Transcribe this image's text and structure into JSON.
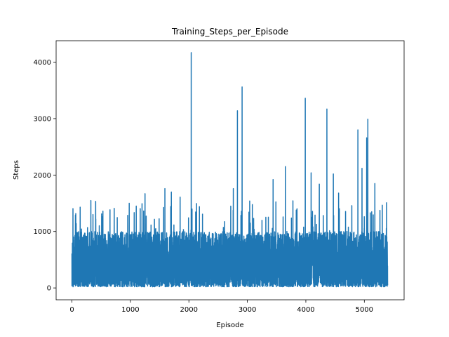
{
  "chart_data": {
    "type": "line",
    "title": "Training_Steps_per_Episode",
    "xlabel": "Episode",
    "ylabel": "Steps",
    "xlim": [
      -270,
      5680
    ],
    "ylim": [
      -210,
      4380
    ],
    "x_ticks": [
      0,
      1000,
      2000,
      3000,
      4000,
      5000
    ],
    "y_ticks": [
      0,
      1000,
      2000,
      3000,
      4000
    ],
    "grid": false,
    "legend": "none",
    "episode_count": 5400,
    "series": [
      {
        "color": "#1f77b4",
        "base_min": 20,
        "base_max": 1000,
        "notable_peaks": [
          {
            "x": 2040,
            "y": 4170
          },
          {
            "x": 2910,
            "y": 3560
          },
          {
            "x": 3990,
            "y": 3360
          },
          {
            "x": 4360,
            "y": 3170
          },
          {
            "x": 2830,
            "y": 3140
          },
          {
            "x": 5060,
            "y": 2990
          },
          {
            "x": 4890,
            "y": 2800
          },
          {
            "x": 5040,
            "y": 2660
          },
          {
            "x": 3650,
            "y": 2150
          },
          {
            "x": 4960,
            "y": 2120
          },
          {
            "x": 4090,
            "y": 2040
          },
          {
            "x": 4470,
            "y": 2020
          },
          {
            "x": 3440,
            "y": 1920
          },
          {
            "x": 4230,
            "y": 1840
          },
          {
            "x": 5180,
            "y": 1850
          },
          {
            "x": 4560,
            "y": 1680
          },
          {
            "x": 2760,
            "y": 1760
          },
          {
            "x": 1590,
            "y": 1760
          },
          {
            "x": 1700,
            "y": 1700
          },
          {
            "x": 1250,
            "y": 1670
          },
          {
            "x": 1850,
            "y": 1610
          },
          {
            "x": 980,
            "y": 1500
          },
          {
            "x": 5380,
            "y": 1510
          },
          {
            "x": 3040,
            "y": 1540
          },
          {
            "x": 2180,
            "y": 1440
          },
          {
            "x": 1100,
            "y": 1450
          },
          {
            "x": 530,
            "y": 1360
          },
          {
            "x": 60,
            "y": 1290
          },
          {
            "x": 360,
            "y": 1300
          }
        ]
      }
    ]
  }
}
